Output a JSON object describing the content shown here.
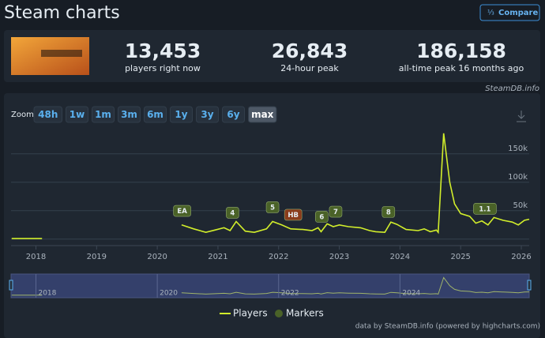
{
  "header": {
    "title": "Steam charts",
    "button": "Compare"
  },
  "stats": [
    {
      "value": "13,453",
      "label": "players right now"
    },
    {
      "value": "26,843",
      "label": "24-hour peak"
    },
    {
      "value": "186,158",
      "label": "all-time peak 16 months ago"
    }
  ],
  "watermark": "SteamDB.info",
  "zoom": {
    "label": "Zoom",
    "options": [
      "48h",
      "1w",
      "1m",
      "3m",
      "6m",
      "1y",
      "3y",
      "6y",
      "max"
    ],
    "active": 8
  },
  "chart_data": {
    "type": "line",
    "x": [
      2017.6,
      2018.1,
      2019.0,
      2020.4,
      2020.6,
      2020.8,
      2020.95,
      2021.1,
      2021.2,
      2021.3,
      2021.45,
      2021.6,
      2021.8,
      2021.9,
      2022.05,
      2022.2,
      2022.4,
      2022.55,
      2022.65,
      2022.7,
      2022.8,
      2022.9,
      2023.0,
      2023.15,
      2023.35,
      2023.5,
      2023.6,
      2023.75,
      2023.85,
      2023.95,
      2024.1,
      2024.3,
      2024.4,
      2024.5,
      2024.6,
      2024.63,
      2024.72,
      2024.82,
      2024.9,
      2025.0,
      2025.15,
      2025.25,
      2025.35,
      2025.45,
      2025.55,
      2025.7,
      2025.85,
      2025.95,
      2026.05,
      2026.13
    ],
    "series": [
      {
        "name": "Players",
        "color": "#d2ee2b",
        "values": [
          1000,
          1000,
          null,
          25000,
          18000,
          12000,
          16000,
          20000,
          15000,
          31000,
          14000,
          12000,
          18000,
          31000,
          25000,
          18000,
          17000,
          15000,
          20000,
          13000,
          27000,
          22000,
          25000,
          22000,
          20000,
          15000,
          13000,
          12000,
          30000,
          26000,
          17000,
          15000,
          18000,
          13000,
          16000,
          12000,
          186158,
          100000,
          62000,
          45000,
          40000,
          28000,
          32000,
          25000,
          38000,
          33000,
          30000,
          25000,
          33000,
          35000
        ]
      }
    ],
    "xlim": [
      2017.59,
      2026.13
    ],
    "xticks": [
      2018,
      2019,
      2020,
      2021,
      2022,
      2023,
      2024,
      2025,
      2026
    ],
    "ylim": [
      -10000,
      190000
    ],
    "yticks": [
      {
        "value": 50000,
        "label": "50k"
      },
      {
        "value": 100000,
        "label": "100k"
      },
      {
        "value": 150000,
        "label": "150k"
      }
    ],
    "grid": true,
    "markers": {
      "name": "Markers",
      "color": "#4a6228",
      "items": [
        {
          "label": "EA",
          "x": 2020.41,
          "color": "#4a6228"
        },
        {
          "label": "4",
          "x": 2021.24,
          "color": "#4a6228"
        },
        {
          "label": "5",
          "x": 2021.9,
          "color": "#4a6228"
        },
        {
          "label": "HB",
          "x": 2022.24,
          "color": "#8a3c1c"
        },
        {
          "label": "6",
          "x": 2022.71,
          "color": "#4a6228"
        },
        {
          "label": "7",
          "x": 2022.94,
          "color": "#4a6228"
        },
        {
          "label": "8",
          "x": 2023.81,
          "color": "#4a6228"
        },
        {
          "label": "1.1",
          "x": 2025.4,
          "color": "#4a6228"
        }
      ]
    },
    "navigator_xticks": [
      2018,
      2020,
      2022,
      2024
    ],
    "credits": "data by SteamDB.info (powered by highcharts.com)"
  }
}
